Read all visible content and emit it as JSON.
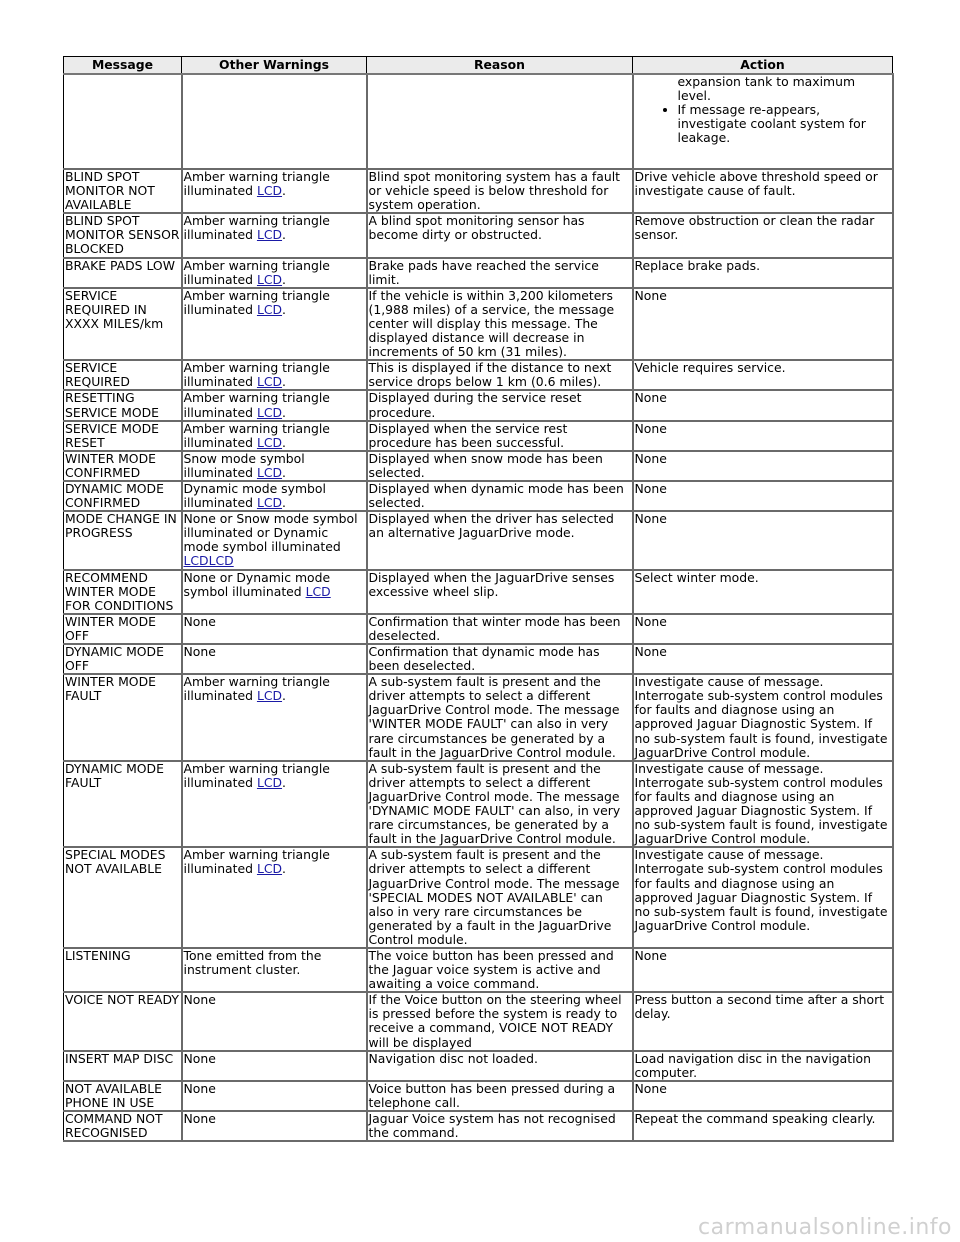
{
  "headers": [
    "Message",
    "Other Warnings",
    "Reason",
    "Action"
  ],
  "first_row": {
    "action_continuation": "expansion tank to maximum level.",
    "action_bullet": "If message re-appears, investigate coolant system for leakage."
  },
  "rows": [
    {
      "message": "BLIND SPOT MONITOR NOT AVAILABLE",
      "warning_text": "Amber warning triangle illuminated ",
      "warning_link": "LCD",
      "warning_tail": ".",
      "reason": "Blind spot monitoring system has a fault or vehicle speed is below threshold for system operation.",
      "action": "Drive vehicle above threshold speed or investigate cause of fault."
    },
    {
      "message": "BLIND SPOT MONITOR SENSOR BLOCKED",
      "warning_text": "Amber warning triangle illuminated ",
      "warning_link": "LCD",
      "warning_tail": ".",
      "reason": "A blind spot monitoring sensor has become dirty or obstructed.",
      "action": "Remove obstruction or clean the radar sensor."
    },
    {
      "message": "BRAKE PADS LOW",
      "warning_text": "Amber warning triangle illuminated ",
      "warning_link": "LCD",
      "warning_tail": ".",
      "reason": "Brake pads have reached the service limit.",
      "action": "Replace brake pads."
    },
    {
      "message": "SERVICE REQUIRED IN XXXX MILES/km",
      "warning_text": "Amber warning triangle illuminated ",
      "warning_link": "LCD",
      "warning_tail": ".",
      "reason": "If the vehicle is within 3,200 kilometers (1,988 miles) of a service, the message center will display this message. The displayed distance will decrease in increments of 50 km (31 miles).",
      "action": "None"
    },
    {
      "message": "SERVICE REQUIRED",
      "warning_text": "Amber warning triangle illuminated ",
      "warning_link": "LCD",
      "warning_tail": ".",
      "reason": "This is displayed if the distance to next service drops below 1 km (0.6 miles).",
      "action": "Vehicle requires service."
    },
    {
      "message": "RESETTING SERVICE MODE",
      "warning_text": "Amber warning triangle illuminated ",
      "warning_link": "LCD",
      "warning_tail": ".",
      "reason": "Displayed during the service reset procedure.",
      "action": "None"
    },
    {
      "message": "SERVICE MODE RESET",
      "warning_text": "Amber warning triangle illuminated ",
      "warning_link": "LCD",
      "warning_tail": ".",
      "reason": "Displayed when the service rest procedure has been successful.",
      "action": "None"
    },
    {
      "message": "WINTER MODE CONFIRMED",
      "warning_text": "Snow mode symbol illuminated ",
      "warning_link": "LCD",
      "warning_tail": ".",
      "reason": "Displayed when snow mode has been selected.",
      "action": "None"
    },
    {
      "message": "DYNAMIC MODE CONFIRMED",
      "warning_text": "Dynamic mode symbol illuminated ",
      "warning_link": "LCD",
      "warning_tail": ".",
      "reason": "Displayed when dynamic mode has been selected.",
      "action": "None"
    },
    {
      "message": "MODE CHANGE IN PROGRESS",
      "warning_text": "None or Snow mode symbol illuminated or Dynamic mode symbol illuminated ",
      "warning_link": "LCDLCD",
      "warning_tail": "",
      "reason": "Displayed when the driver has selected an alternative JaguarDrive mode.",
      "action": "None"
    },
    {
      "message": "RECOMMEND WINTER MODE FOR CONDITIONS",
      "warning_text": "None or Dynamic mode symbol illuminated ",
      "warning_link": "LCD",
      "warning_tail": "",
      "reason": "Displayed when the JaguarDrive senses excessive wheel slip.",
      "action": "Select winter mode."
    },
    {
      "message": "WINTER MODE OFF",
      "warning_text": "None",
      "warning_link": "",
      "warning_tail": "",
      "reason": "Confirmation that winter mode has been deselected.",
      "action": "None"
    },
    {
      "message": "DYNAMIC MODE OFF",
      "warning_text": "None",
      "warning_link": "",
      "warning_tail": "",
      "reason": "Confirmation that dynamic mode has been deselected.",
      "action": "None"
    },
    {
      "message": "WINTER MODE FAULT",
      "warning_text": "Amber warning triangle illuminated ",
      "warning_link": "LCD",
      "warning_tail": ".",
      "reason": "A sub-system fault is present and the driver attempts to select a different JaguarDrive Control mode. The message 'WINTER MODE FAULT' can also in very rare circumstances be generated by a fault in the JaguarDrive Control module.",
      "action": "Investigate cause of message. Interrogate sub-system control modules for faults and diagnose using an approved Jaguar Diagnostic System. If no sub-system fault is found, investigate JaguarDrive Control module."
    },
    {
      "message": "DYNAMIC MODE FAULT",
      "warning_text": "Amber warning triangle illuminated ",
      "warning_link": "LCD",
      "warning_tail": ".",
      "reason": "A sub-system fault is present and the driver attempts to select a different JaguarDrive Control mode. The message 'DYNAMIC MODE FAULT' can also, in very rare circumstances, be generated by a fault in the JaguarDrive Control module.",
      "action": "Investigate cause of message. Interrogate sub-system control modules for faults and diagnose using an approved Jaguar Diagnostic System. If no sub-system fault is found, investigate JaguarDrive Control module."
    },
    {
      "message": "SPECIAL MODES NOT AVAILABLE",
      "warning_text": "Amber warning triangle illuminated ",
      "warning_link": "LCD",
      "warning_tail": ".",
      "reason": "A sub-system fault is present and the driver attempts to select a different JaguarDrive Control mode. The message 'SPECIAL MODES NOT AVAILABLE' can also in very rare circumstances be generated by a fault in the JaguarDrive Control module.",
      "action": "Investigate cause of message. Interrogate sub-system control modules for faults and diagnose using an approved Jaguar Diagnostic System. If no sub-system fault is found, investigate JaguarDrive Control module."
    },
    {
      "message": "LISTENING",
      "warning_text": "Tone emitted from the instrument cluster.",
      "warning_link": "",
      "warning_tail": "",
      "reason": "The voice button has been pressed and the Jaguar voice system is active and awaiting a voice command.",
      "action": "None"
    },
    {
      "message": "VOICE NOT READY",
      "warning_text": "None",
      "warning_link": "",
      "warning_tail": "",
      "reason": "If the Voice button on the steering wheel is pressed before the system is ready to receive a command, VOICE NOT READY will be displayed",
      "action": "Press button a second time after a short delay."
    },
    {
      "message": "INSERT MAP DISC",
      "warning_text": "None",
      "warning_link": "",
      "warning_tail": "",
      "reason": "Navigation disc not loaded.",
      "action": "Load navigation disc in the navigation computer."
    },
    {
      "message": "NOT AVAILABLE PHONE IN USE",
      "warning_text": "None",
      "warning_link": "",
      "warning_tail": "",
      "reason": "Voice button has been pressed during a telephone call.",
      "action": "None"
    },
    {
      "message": "COMMAND NOT RECOGNISED",
      "warning_text": "None",
      "warning_link": "",
      "warning_tail": "",
      "reason": "Jaguar Voice system has not recognised the command.",
      "action": "Repeat the command speaking clearly."
    }
  ],
  "watermark": "carmanualsonline.info"
}
